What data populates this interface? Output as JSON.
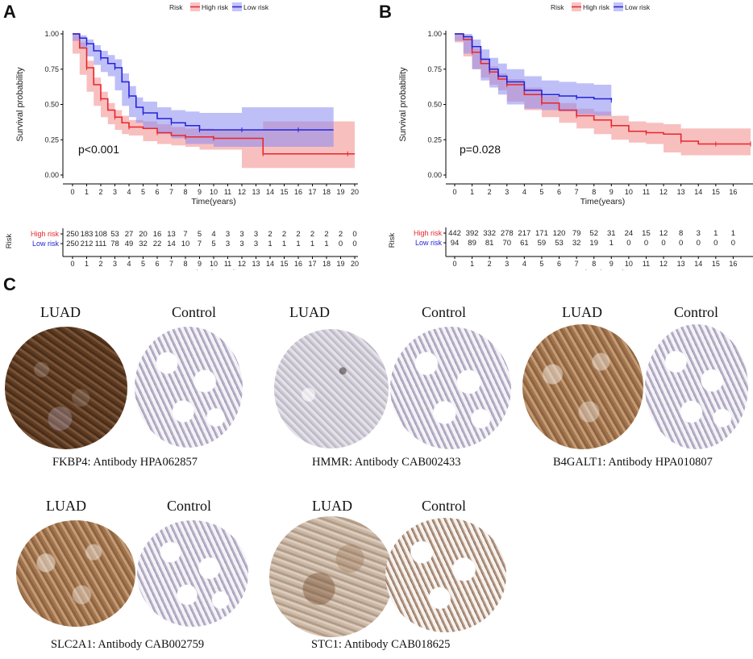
{
  "panel_labels": {
    "a": "A",
    "b": "B",
    "c": "C"
  },
  "colors": {
    "high_risk": "#e8262b",
    "low_risk": "#2424d8",
    "high_fill": "#f28a8a",
    "low_fill": "#8a8af2"
  },
  "chart_data": [
    {
      "type": "line",
      "subtype": "kaplan-meier",
      "title": "",
      "legend": {
        "title": "Risk",
        "entries": [
          "High risk",
          "Low risk"
        ],
        "position": "top"
      },
      "xlabel": "Time(years)",
      "ylabel": "Survival probability",
      "xlim": [
        0,
        20
      ],
      "ylim": [
        0,
        1
      ],
      "x_ticks": [
        "0",
        "1",
        "2",
        "3",
        "4",
        "5",
        "6",
        "7",
        "8",
        "9",
        "10",
        "11",
        "12",
        "13",
        "14",
        "15",
        "16",
        "17",
        "18",
        "19",
        "20"
      ],
      "y_ticks": [
        "0.00",
        "0.25",
        "0.50",
        "0.75",
        "1.00"
      ],
      "pvalue": "p<0.001",
      "series": [
        {
          "name": "High risk",
          "x": [
            0,
            0.5,
            1,
            1.5,
            2,
            2.5,
            3,
            3.5,
            4,
            5,
            6,
            7,
            8,
            9,
            10,
            12,
            13.5,
            15,
            19.5,
            20
          ],
          "y": [
            1.0,
            0.9,
            0.76,
            0.64,
            0.54,
            0.46,
            0.41,
            0.37,
            0.34,
            0.33,
            0.3,
            0.28,
            0.27,
            0.27,
            0.26,
            0.26,
            0.15,
            0.15,
            0.15,
            0.15
          ],
          "lower": [
            1.0,
            0.86,
            0.71,
            0.59,
            0.49,
            0.41,
            0.36,
            0.32,
            0.29,
            0.28,
            0.24,
            0.22,
            0.21,
            0.2,
            0.18,
            0.18,
            0.05,
            0.05,
            0.05,
            0.05
          ],
          "upper": [
            1.0,
            0.94,
            0.81,
            0.69,
            0.59,
            0.51,
            0.46,
            0.42,
            0.39,
            0.38,
            0.36,
            0.34,
            0.33,
            0.33,
            0.32,
            0.32,
            0.38,
            0.38,
            0.38,
            0.38
          ]
        },
        {
          "name": "Low risk",
          "x": [
            0,
            0.5,
            1,
            1.5,
            2,
            2.5,
            3,
            3.5,
            4,
            4.5,
            5,
            6,
            7,
            8,
            9,
            10,
            12,
            14,
            16,
            18.5
          ],
          "y": [
            1.0,
            0.97,
            0.93,
            0.88,
            0.83,
            0.79,
            0.76,
            0.66,
            0.56,
            0.48,
            0.44,
            0.4,
            0.37,
            0.35,
            0.32,
            0.32,
            0.32,
            0.32,
            0.32,
            0.32
          ],
          "lower": [
            1.0,
            0.95,
            0.9,
            0.84,
            0.78,
            0.73,
            0.7,
            0.6,
            0.49,
            0.41,
            0.37,
            0.33,
            0.29,
            0.26,
            0.22,
            0.22,
            0.2,
            0.2,
            0.2,
            0.2
          ],
          "upper": [
            1.0,
            0.99,
            0.96,
            0.92,
            0.88,
            0.85,
            0.82,
            0.72,
            0.63,
            0.55,
            0.52,
            0.48,
            0.46,
            0.45,
            0.44,
            0.44,
            0.48,
            0.48,
            0.48,
            0.48
          ]
        }
      ],
      "risk_table": {
        "xlabel": "Time(years)",
        "ylabel": "Risk",
        "rows": [
          {
            "name": "High risk",
            "values": [
              "250",
              "183",
              "108",
              "53",
              "27",
              "20",
              "16",
              "13",
              "7",
              "5",
              "4",
              "3",
              "3",
              "3",
              "2",
              "2",
              "2",
              "2",
              "2",
              "2",
              "0"
            ]
          },
          {
            "name": "Low risk",
            "values": [
              "250",
              "212",
              "111",
              "78",
              "49",
              "32",
              "22",
              "14",
              "10",
              "7",
              "5",
              "3",
              "3",
              "3",
              "1",
              "1",
              "1",
              "1",
              "1",
              "0",
              "0"
            ]
          }
        ]
      }
    },
    {
      "type": "line",
      "subtype": "kaplan-meier",
      "title": "",
      "legend": {
        "title": "Risk",
        "entries": [
          "High risk",
          "Low risk"
        ],
        "position": "top"
      },
      "xlabel": "Time(years)",
      "ylabel": "Survival probability",
      "xlim": [
        0,
        17
      ],
      "ylim": [
        0,
        1
      ],
      "x_ticks": [
        "0",
        "1",
        "2",
        "3",
        "4",
        "5",
        "6",
        "7",
        "8",
        "9",
        "10",
        "11",
        "12",
        "13",
        "14",
        "15",
        "16"
      ],
      "y_ticks": [
        "0.00",
        "0.25",
        "0.50",
        "0.75",
        "1.00"
      ],
      "pvalue": "p=0.028",
      "series": [
        {
          "name": "High risk",
          "x": [
            0,
            0.5,
            1,
            1.5,
            2,
            2.5,
            3,
            4,
            5,
            6,
            7,
            8,
            9,
            10,
            11,
            12,
            13,
            14,
            15,
            16,
            17
          ],
          "y": [
            1.0,
            0.96,
            0.87,
            0.79,
            0.73,
            0.68,
            0.64,
            0.57,
            0.51,
            0.46,
            0.42,
            0.39,
            0.35,
            0.31,
            0.3,
            0.29,
            0.24,
            0.22,
            0.22,
            0.22,
            0.22
          ],
          "lower": [
            1.0,
            0.94,
            0.84,
            0.75,
            0.69,
            0.64,
            0.6,
            0.52,
            0.46,
            0.41,
            0.37,
            0.33,
            0.29,
            0.25,
            0.23,
            0.22,
            0.16,
            0.14,
            0.14,
            0.14,
            0.14
          ],
          "upper": [
            1.0,
            0.98,
            0.9,
            0.83,
            0.77,
            0.72,
            0.68,
            0.62,
            0.56,
            0.51,
            0.47,
            0.45,
            0.42,
            0.38,
            0.37,
            0.36,
            0.33,
            0.33,
            0.33,
            0.33,
            0.33
          ]
        },
        {
          "name": "Low risk",
          "x": [
            0,
            0.5,
            1,
            1.5,
            2,
            2.5,
            3,
            4,
            5,
            6,
            7,
            8,
            9
          ],
          "y": [
            1.0,
            0.98,
            0.91,
            0.82,
            0.75,
            0.7,
            0.66,
            0.6,
            0.57,
            0.56,
            0.55,
            0.54,
            0.53
          ],
          "lower": [
            1.0,
            0.95,
            0.86,
            0.75,
            0.67,
            0.62,
            0.57,
            0.5,
            0.47,
            0.46,
            0.45,
            0.43,
            0.42
          ],
          "upper": [
            1.0,
            1.0,
            0.96,
            0.89,
            0.83,
            0.79,
            0.75,
            0.7,
            0.67,
            0.66,
            0.65,
            0.64,
            0.64
          ]
        }
      ],
      "risk_table": {
        "xlabel": "Time(years)",
        "ylabel": "Risk",
        "rows": [
          {
            "name": "High risk",
            "values": [
              "442",
              "392",
              "332",
              "278",
              "217",
              "171",
              "120",
              "79",
              "52",
              "31",
              "24",
              "15",
              "12",
              "8",
              "3",
              "1",
              "1"
            ]
          },
          {
            "name": "Low risk",
            "values": [
              "94",
              "89",
              "81",
              "70",
              "61",
              "59",
              "53",
              "32",
              "19",
              "1",
              "0",
              "0",
              "0",
              "0",
              "0",
              "0",
              "0"
            ]
          }
        ]
      }
    }
  ],
  "ihc": [
    {
      "luad_label": "LUAD",
      "control_label": "Control",
      "caption": "FKBP4: Antibody HPA062857"
    },
    {
      "luad_label": "LUAD",
      "control_label": "Control",
      "caption": "HMMR: Antibody  CAB002433"
    },
    {
      "luad_label": "LUAD",
      "control_label": "Control",
      "caption": "B4GALT1: Antibody HPA010807"
    },
    {
      "luad_label": "LUAD",
      "control_label": "Control",
      "caption": "SLC2A1: Antibody CAB002759"
    },
    {
      "luad_label": "LUAD",
      "control_label": "Control",
      "caption": "STC1: Antibody CAB018625"
    }
  ]
}
